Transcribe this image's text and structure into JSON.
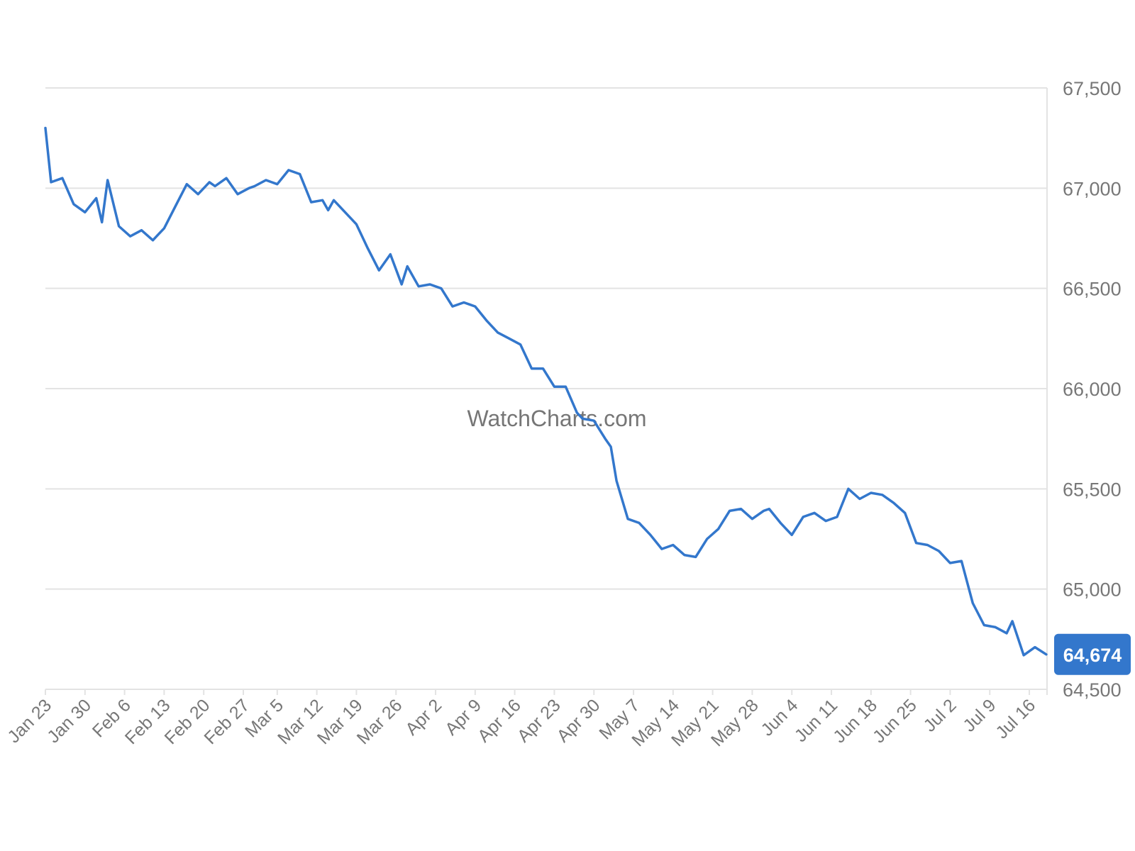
{
  "watermark": "WatchCharts.com",
  "colors": {
    "line": "#3377cc",
    "grid": "#e3e3e3",
    "axis_text": "#777777",
    "badge_bg": "#3377cc",
    "badge_text": "#ffffff"
  },
  "last_value_label": "64,674",
  "chart_data": {
    "type": "line",
    "x_axis_type": "date",
    "year": "",
    "title": "",
    "xlabel": "",
    "ylabel": "",
    "ylim": [
      64500,
      67500
    ],
    "y_ticks": [
      64500,
      65000,
      65500,
      66000,
      66500,
      67000,
      67500
    ],
    "y_tick_labels": [
      "64,500",
      "65,000",
      "65,500",
      "66,000",
      "66,500",
      "67,000",
      "67,500"
    ],
    "x_tick_labels": [
      "Jan 23",
      "Jan 30",
      "Feb 6",
      "Feb 13",
      "Feb 20",
      "Feb 27",
      "Mar 5",
      "Mar 12",
      "Mar 19",
      "Mar 26",
      "Apr 2",
      "Apr 9",
      "Apr 16",
      "Apr 23",
      "Apr 30",
      "May 7",
      "May 14",
      "May 21",
      "May 28",
      "Jun 4",
      "Jun 11",
      "Jun 18",
      "Jun 25",
      "Jul 2",
      "Jul 9",
      "Jul 16"
    ],
    "grid": true,
    "y_axis_position": "right",
    "series": [
      {
        "x": [
          "Jan 23",
          "Jan 24",
          "Jan 26",
          "Jan 28",
          "Jan 30",
          "Feb 1",
          "Feb 2",
          "Feb 3",
          "Feb 5",
          "Feb 7",
          "Feb 9",
          "Feb 11",
          "Feb 12",
          "Feb 13",
          "Feb 15",
          "Feb 17",
          "Feb 19",
          "Feb 21",
          "Feb 22",
          "Feb 24",
          "Feb 26",
          "Feb 28",
          "Mar 1",
          "Mar 3",
          "Mar 5",
          "Mar 7",
          "Mar 9",
          "Mar 11",
          "Mar 13",
          "Mar 14",
          "Mar 15",
          "Mar 17",
          "Mar 19",
          "Mar 21",
          "Mar 23",
          "Mar 25",
          "Mar 27",
          "Mar 28",
          "Mar 30",
          "Apr 1",
          "Apr 3",
          "Apr 5",
          "Apr 7",
          "Apr 8",
          "Apr 9",
          "Apr 11",
          "Apr 13",
          "Apr 15",
          "Apr 17",
          "Apr 19",
          "Apr 21",
          "Apr 23",
          "Apr 25",
          "Apr 27",
          "Apr 28",
          "Apr 30",
          "May 2",
          "May 3",
          "May 4",
          "May 6",
          "May 8",
          "May 10",
          "May 12",
          "May 14",
          "May 16",
          "May 18",
          "May 20",
          "May 22",
          "May 24",
          "May 26",
          "May 28",
          "May 30",
          "May 31",
          "Jun 2",
          "Jun 4",
          "Jun 6",
          "Jun 8",
          "Jun 10",
          "Jun 12",
          "Jun 14",
          "Jun 16",
          "Jun 18",
          "Jun 20",
          "Jun 22",
          "Jun 24",
          "Jun 26",
          "Jun 28",
          "Jun 30",
          "Jul 2",
          "Jul 4",
          "Jul 6",
          "Jul 8",
          "Jul 10",
          "Jul 12",
          "Jul 13",
          "Jul 15",
          "Jul 17",
          "Jul 19"
        ],
        "values": [
          67300,
          67030,
          67050,
          66920,
          66880,
          66950,
          66830,
          67040,
          66810,
          66760,
          66790,
          66740,
          66770,
          66800,
          66910,
          67020,
          66970,
          67030,
          67010,
          67050,
          66970,
          67000,
          67010,
          67040,
          67020,
          67090,
          67070,
          66930,
          66940,
          66890,
          66940,
          66880,
          66820,
          66700,
          66590,
          66670,
          66520,
          66610,
          66510,
          66520,
          66500,
          66410,
          66430,
          66420,
          66410,
          66340,
          66280,
          66250,
          66220,
          66100,
          66100,
          66010,
          66010,
          65880,
          65850,
          65840,
          65750,
          65710,
          65540,
          65350,
          65330,
          65270,
          65200,
          65220,
          65170,
          65160,
          65250,
          65300,
          65390,
          65400,
          65350,
          65390,
          65400,
          65330,
          65270,
          65360,
          65380,
          65340,
          65360,
          65500,
          65450,
          65480,
          65470,
          65430,
          65380,
          65230,
          65220,
          65190,
          65130,
          65140,
          64930,
          64820,
          64810,
          64780,
          64840,
          64670,
          64710,
          64674
        ]
      }
    ]
  }
}
